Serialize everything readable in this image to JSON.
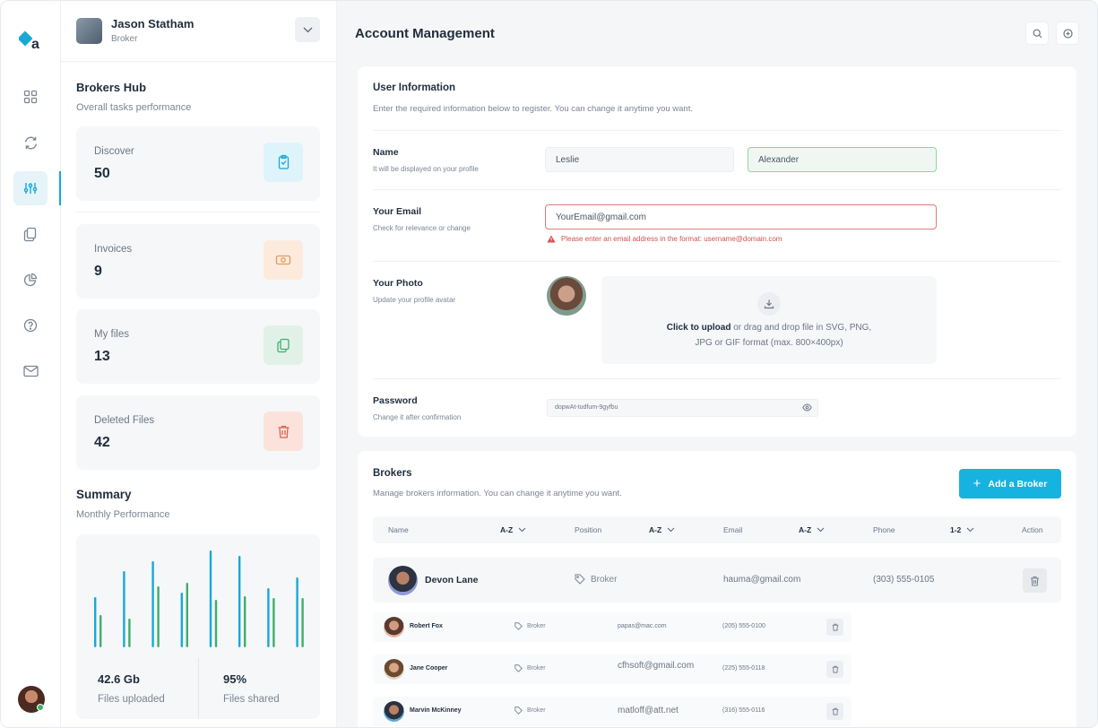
{
  "user": {
    "name": "Jason Statham",
    "role": "Broker"
  },
  "hub": {
    "title": "Brokers Hub",
    "subtitle": "Overall tasks performance"
  },
  "cards": [
    {
      "label": "Discover",
      "value": "50",
      "color": "#17a9d6",
      "bg": "#dff3fb",
      "icon": "clipboard-icon"
    },
    {
      "label": "Invoices",
      "value": "9",
      "color": "#e59a5e",
      "bg": "#fcebdd",
      "icon": "cash-icon"
    },
    {
      "label": "My files",
      "value": "13",
      "color": "#3fae6a",
      "bg": "#e2f1e8",
      "icon": "files-icon"
    },
    {
      "label": "Deleted Files",
      "value": "42",
      "color": "#d8654e",
      "bg": "#fbe3dc",
      "icon": "trash-icon"
    }
  ],
  "summary": {
    "title": "Summary",
    "subtitle": "Monthly Performance"
  },
  "chart_data": {
    "type": "bar",
    "series": [
      {
        "color": "#17a9d6",
        "values": [
          56,
          85,
          96,
          61,
          108,
          102,
          66,
          78
        ]
      },
      {
        "color": "#3fae6a",
        "values": [
          36,
          32,
          68,
          72,
          53,
          57,
          55,
          55
        ]
      }
    ],
    "grid": false
  },
  "stats": [
    {
      "value": "42.6 Gb",
      "label": "Files uploaded"
    },
    {
      "value": "95%",
      "label": "Files shared"
    }
  ],
  "page": {
    "title": "Account Management"
  },
  "userinfo": {
    "title": "User Information",
    "subtitle": "Enter the required information below to register. You can change it anytime you want.",
    "name_label": "Name",
    "name_help": "It will be displayed on your profile",
    "first_name": "Leslie",
    "last_name": "Alexander",
    "email_label": "Your Email",
    "email_help": "Check for relevance or change",
    "email_value": "YourEmail@gmail.com",
    "email_error": "Please enter an email address in the format: username@domain.com",
    "photo_label": "Your Photo",
    "photo_help": "Update your profile avatar",
    "upload_strong": "Click to upload",
    "upload_rest": " or drag and drop file in SVG, PNG,",
    "upload_line2": "JPG or GIF format (max. 800×400px)",
    "password_label": "Password",
    "password_help": "Change it after confirmation",
    "password_value": "dopwAt-tudfum-9gyfbu"
  },
  "brokers": {
    "title": "Brokers",
    "subtitle": "Manage brokers information. You can change it anytime you want.",
    "add_label": "Add a Broker",
    "columns": {
      "name": "Name",
      "position": "Position",
      "email": "Email",
      "phone": "Phone",
      "action": "Action"
    },
    "sorts": {
      "name": "A-Z",
      "position": "A-Z",
      "email": "A-Z",
      "phone": "1-2"
    },
    "featured": {
      "name": "Devon Lane",
      "position": "Broker",
      "email": "hauma@gmail.com",
      "phone": "(303) 555-0105"
    },
    "rows": [
      {
        "name": "Robert Fox",
        "position": "Broker",
        "email": "papas@mac.com",
        "phone": "(205) 555-0100"
      },
      {
        "name": "Jane Cooper",
        "position": "Broker",
        "email": "cfhsoft@gmail.com",
        "phone": "(225) 555-0118"
      },
      {
        "name": "Marvin McKinney",
        "position": "Broker",
        "email": "matloff@att.net",
        "phone": "(316) 555-0116"
      }
    ]
  }
}
